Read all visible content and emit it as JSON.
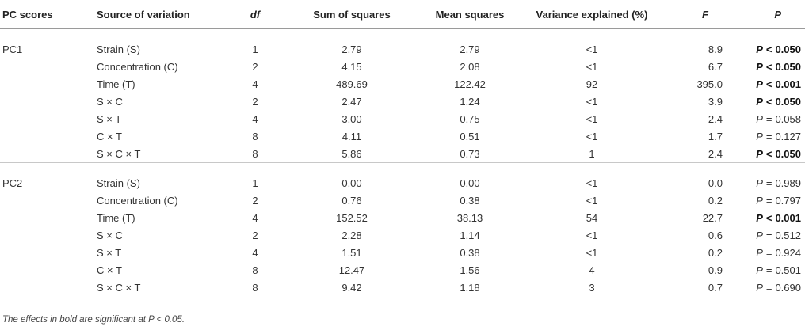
{
  "headers": {
    "pc": "PC scores",
    "source": "Source of variation",
    "df": "df",
    "ss": "Sum of squares",
    "ms": "Mean squares",
    "ve": "Variance explained (%)",
    "f": "F",
    "p": "P"
  },
  "groups": [
    {
      "name": "PC1",
      "rows": [
        {
          "source": "Strain (S)",
          "df": "1",
          "ss": "2.79",
          "ms": "2.79",
          "ve": "<1",
          "f": "8.9",
          "p_label": "P",
          "p_op": "<",
          "p_val": "0.050",
          "bold": true
        },
        {
          "source": "Concentration (C)",
          "df": "2",
          "ss": "4.15",
          "ms": "2.08",
          "ve": "<1",
          "f": "6.7",
          "p_label": "P",
          "p_op": "<",
          "p_val": "0.050",
          "bold": true
        },
        {
          "source": "Time (T)",
          "df": "4",
          "ss": "489.69",
          "ms": "122.42",
          "ve": "92",
          "f": "395.0",
          "p_label": "P",
          "p_op": "<",
          "p_val": "0.001",
          "bold": true
        },
        {
          "source": "S × C",
          "df": "2",
          "ss": "2.47",
          "ms": "1.24",
          "ve": "<1",
          "f": "3.9",
          "p_label": "P",
          "p_op": "<",
          "p_val": "0.050",
          "bold": true
        },
        {
          "source": "S × T",
          "df": "4",
          "ss": "3.00",
          "ms": "0.75",
          "ve": "<1",
          "f": "2.4",
          "p_label": "P",
          "p_op": "=",
          "p_val": "0.058",
          "bold": false
        },
        {
          "source": "C × T",
          "df": "8",
          "ss": "4.11",
          "ms": "0.51",
          "ve": "<1",
          "f": "1.7",
          "p_label": "P",
          "p_op": "=",
          "p_val": "0.127",
          "bold": false
        },
        {
          "source": "S × C × T",
          "df": "8",
          "ss": "5.86",
          "ms": "0.73",
          "ve": "1",
          "f": "2.4",
          "p_label": "P",
          "p_op": "<",
          "p_val": "0.050",
          "bold": true
        }
      ]
    },
    {
      "name": "PC2",
      "rows": [
        {
          "source": "Strain (S)",
          "df": "1",
          "ss": "0.00",
          "ms": "0.00",
          "ve": "<1",
          "f": "0.0",
          "p_label": "P",
          "p_op": "=",
          "p_val": "0.989",
          "bold": false
        },
        {
          "source": "Concentration (C)",
          "df": "2",
          "ss": "0.76",
          "ms": "0.38",
          "ve": "<1",
          "f": "0.2",
          "p_label": "P",
          "p_op": "=",
          "p_val": "0.797",
          "bold": false
        },
        {
          "source": "Time (T)",
          "df": "4",
          "ss": "152.52",
          "ms": "38.13",
          "ve": "54",
          "f": "22.7",
          "p_label": "P",
          "p_op": "<",
          "p_val": "0.001",
          "bold": true
        },
        {
          "source": "S × C",
          "df": "2",
          "ss": "2.28",
          "ms": "1.14",
          "ve": "<1",
          "f": "0.6",
          "p_label": "P",
          "p_op": "=",
          "p_val": "0.512",
          "bold": false
        },
        {
          "source": "S × T",
          "df": "4",
          "ss": "1.51",
          "ms": "0.38",
          "ve": "<1",
          "f": "0.2",
          "p_label": "P",
          "p_op": "=",
          "p_val": "0.924",
          "bold": false
        },
        {
          "source": "C × T",
          "df": "8",
          "ss": "12.47",
          "ms": "1.56",
          "ve": "4",
          "f": "0.9",
          "p_label": "P",
          "p_op": "=",
          "p_val": "0.501",
          "bold": false
        },
        {
          "source": "S × C × T",
          "df": "8",
          "ss": "9.42",
          "ms": "1.18",
          "ve": "3",
          "f": "0.7",
          "p_label": "P",
          "p_op": "=",
          "p_val": "0.690",
          "bold": false
        }
      ]
    }
  ],
  "footnote": "The effects in bold are significant at P < 0.05."
}
